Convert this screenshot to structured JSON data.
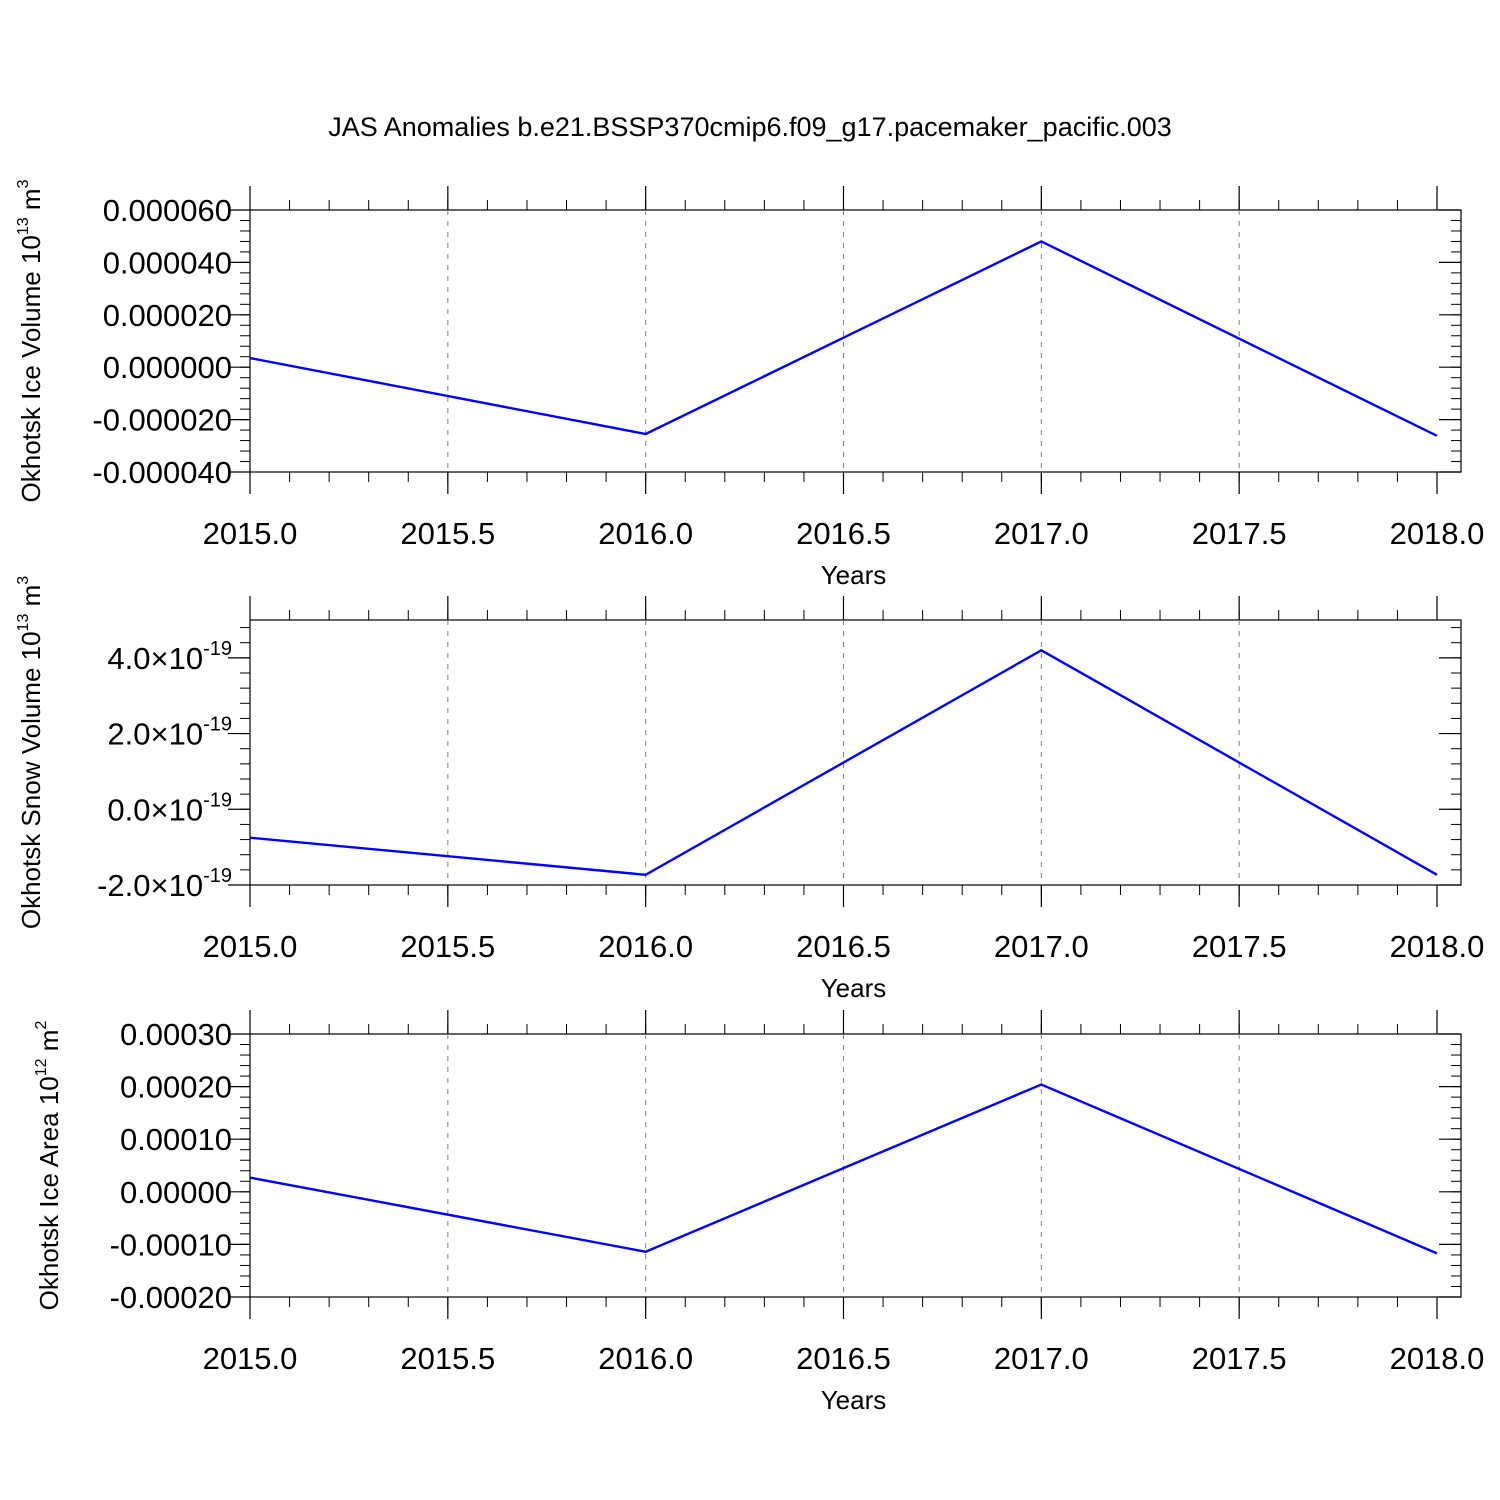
{
  "title": "JAS Anomalies b.e21.BSSP370cmip6.f09_g17.pacemaker_pacific.003",
  "colors": {
    "line": "#0000ff",
    "axis": "#000000",
    "grid": "#808080"
  },
  "chart_data": [
    {
      "type": "line",
      "xlabel": "Years",
      "ylabel": "Okhotsk Ice Volume 10",
      "ylabel_sup": "13",
      "ylabel_unit": " m",
      "ylabel_unit_sup": "3",
      "xlim": [
        2015.0,
        2018.0
      ],
      "ylim": [
        -4e-05,
        6e-05
      ],
      "x_ticks": [
        "2015.0",
        "2015.5",
        "2016.0",
        "2016.5",
        "2017.0",
        "2017.5",
        "2018.0"
      ],
      "y_ticks": [
        {
          "value": 6e-05,
          "label": "0.000060"
        },
        {
          "value": 4e-05,
          "label": "0.000040"
        },
        {
          "value": 2e-05,
          "label": "0.000020"
        },
        {
          "value": 0.0,
          "label": "0.000000"
        },
        {
          "value": -2e-05,
          "label": "-0.000020"
        },
        {
          "value": -4e-05,
          "label": "-0.000040"
        }
      ],
      "grid": true,
      "x": [
        2015,
        2016,
        2017,
        2018
      ],
      "series": [
        {
          "values": [
            3.5e-06,
            -2.55e-05,
            4.8e-05,
            -2.62e-05
          ]
        }
      ]
    },
    {
      "type": "line",
      "xlabel": "Years",
      "ylabel": "Okhotsk Snow Volume 10",
      "ylabel_sup": "13",
      "ylabel_unit": " m",
      "ylabel_unit_sup": "3",
      "xlim": [
        2015.0,
        2018.0
      ],
      "ylim": [
        -2e-19,
        5e-19
      ],
      "x_ticks": [
        "2015.0",
        "2015.5",
        "2016.0",
        "2016.5",
        "2017.0",
        "2017.5",
        "2018.0"
      ],
      "y_ticks": [
        {
          "value": 4e-19,
          "mantissa": "4.0",
          "exp": "-19"
        },
        {
          "value": 2e-19,
          "mantissa": "2.0",
          "exp": "-19"
        },
        {
          "value": 0.0,
          "mantissa": "0.0",
          "exp": "-19"
        },
        {
          "value": -2e-19,
          "mantissa": "-2.0",
          "exp": "-19"
        }
      ],
      "times_symbol": "×10",
      "grid": true,
      "x": [
        2015,
        2016,
        2017,
        2018
      ],
      "series": [
        {
          "values": [
            -7.5e-20,
            -1.73e-19,
            4.2e-19,
            -1.73e-19
          ]
        }
      ]
    },
    {
      "type": "line",
      "xlabel": "Years",
      "ylabel": "Okhotsk Ice Area 10",
      "ylabel_sup": "12",
      "ylabel_unit": " m",
      "ylabel_unit_sup": "2",
      "xlim": [
        2015.0,
        2018.0
      ],
      "ylim": [
        -0.0002,
        0.0003
      ],
      "x_ticks": [
        "2015.0",
        "2015.5",
        "2016.0",
        "2016.5",
        "2017.0",
        "2017.5",
        "2018.0"
      ],
      "y_ticks": [
        {
          "value": 0.0003,
          "label": "0.00030"
        },
        {
          "value": 0.0002,
          "label": "0.00020"
        },
        {
          "value": 0.0001,
          "label": "0.00010"
        },
        {
          "value": 0.0,
          "label": "0.00000"
        },
        {
          "value": -0.0001,
          "label": "-0.00010"
        },
        {
          "value": -0.0002,
          "label": "-0.00020"
        }
      ],
      "grid": true,
      "x": [
        2015,
        2016,
        2017,
        2018
      ],
      "series": [
        {
          "values": [
            2.7e-05,
            -0.000114,
            0.000204,
            -0.000117
          ]
        }
      ]
    }
  ]
}
